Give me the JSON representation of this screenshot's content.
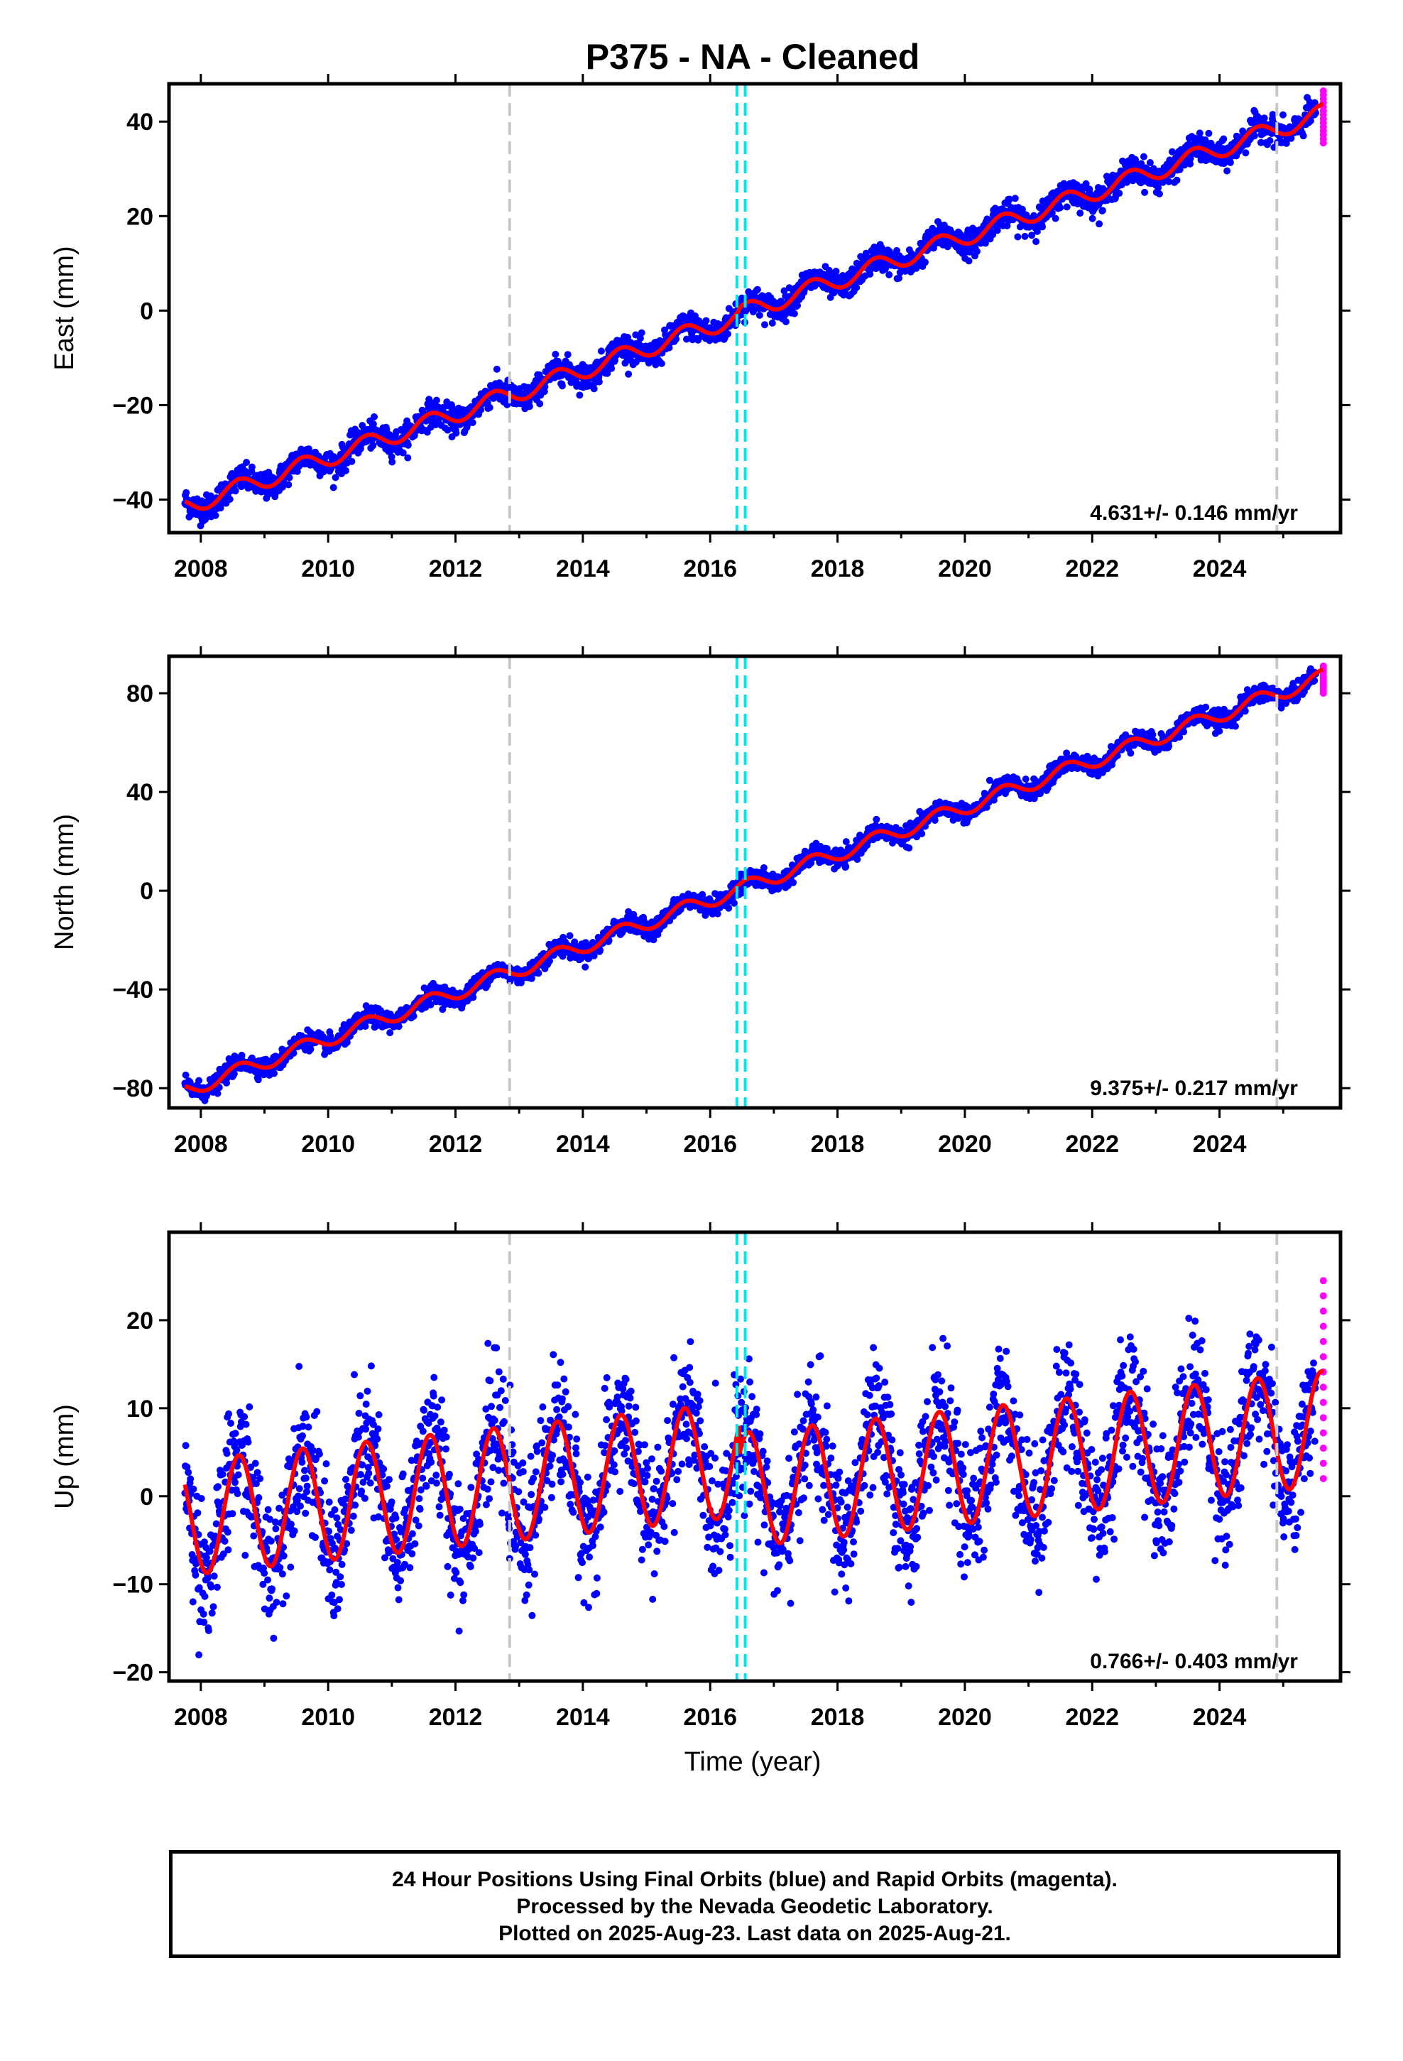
{
  "title": "P375  - NA - Cleaned",
  "colors": {
    "final": "#0000ff",
    "rapid": "#ff00ff",
    "fit": "#ff0000",
    "event_gray": "#c8c8c8",
    "event_cyan": "#00e5ee",
    "frame": "#000000"
  },
  "xlabel": "Time (year)",
  "footer": {
    "line1": "24 Hour Positions Using Final Orbits (blue) and Rapid Orbits (magenta).",
    "line2": "Processed by the Nevada Geodetic Laboratory.",
    "line3": "Plotted on 2025-Aug-23. Last data on 2025-Aug-21."
  },
  "chart_data": [
    {
      "type": "scatter",
      "component": "East",
      "ylabel": "East (mm)",
      "rate": "4.631+/- 0.146 mm/yr",
      "xlim": [
        2007.5,
        2025.9
      ],
      "ylim": [
        -47,
        48
      ],
      "xticks": [
        "2008",
        "2010",
        "2012",
        "2014",
        "2016",
        "2018",
        "2020",
        "2022",
        "2024"
      ],
      "yticks": [
        "40",
        "20",
        "0",
        "−20",
        "−40"
      ],
      "ytick_values": [
        40,
        20,
        0,
        -20,
        -40
      ],
      "data_start": 2007.75,
      "data_end": 2025.63,
      "start_value": -41.5,
      "velocity_mm_per_yr": 4.631,
      "offset_2016_mm": 0.5,
      "annual_amplitude_mm": 1.9,
      "noise_sd_mm": 1.4,
      "event_lines": {
        "gray": [
          2012.85,
          2024.9
        ],
        "cyan": [
          2016.42,
          2016.55
        ]
      },
      "rapid_range": [
        35.5,
        46.5
      ]
    },
    {
      "type": "scatter",
      "component": "North",
      "ylabel": "North (mm)",
      "rate": "9.375+/- 0.217 mm/yr",
      "xlim": [
        2007.5,
        2025.9
      ],
      "ylim": [
        -88,
        95
      ],
      "xticks": [
        "2008",
        "2010",
        "2012",
        "2014",
        "2016",
        "2018",
        "2020",
        "2022",
        "2024"
      ],
      "yticks": [
        "80",
        "40",
        "0",
        "−40",
        "−80"
      ],
      "ytick_values": [
        80,
        40,
        0,
        -40,
        -80
      ],
      "data_start": 2007.75,
      "data_end": 2025.63,
      "start_value": -81,
      "velocity_mm_per_yr": 9.375,
      "offset_2016_mm": 0,
      "annual_amplitude_mm": 3.0,
      "noise_sd_mm": 1.8,
      "event_lines": {
        "gray": [
          2012.85,
          2024.9
        ],
        "cyan": [
          2016.42,
          2016.55
        ]
      },
      "rapid_range": [
        80,
        91
      ]
    },
    {
      "type": "scatter",
      "component": "Up",
      "ylabel": "Up (mm)",
      "rate": "0.766+/- 0.403 mm/yr",
      "xlim": [
        2007.5,
        2025.9
      ],
      "ylim": [
        -21,
        30
      ],
      "xticks": [
        "2008",
        "2010",
        "2012",
        "2014",
        "2016",
        "2018",
        "2020",
        "2022",
        "2024"
      ],
      "yticks": [
        "20",
        "10",
        "0",
        "−10",
        "−20"
      ],
      "ytick_values": [
        20,
        10,
        0,
        -10,
        -20
      ],
      "data_start": 2007.75,
      "data_end": 2025.63,
      "start_value": -2.5,
      "velocity_mm_per_yr": 0.766,
      "offset_2016_mm": -3.5,
      "annual_amplitude_mm": 6.5,
      "noise_sd_mm": 3.6,
      "event_lines": {
        "gray": [
          2012.85,
          2024.9
        ],
        "cyan": [
          2016.42,
          2016.55
        ]
      },
      "rapid_range": [
        2,
        24.5
      ]
    }
  ]
}
